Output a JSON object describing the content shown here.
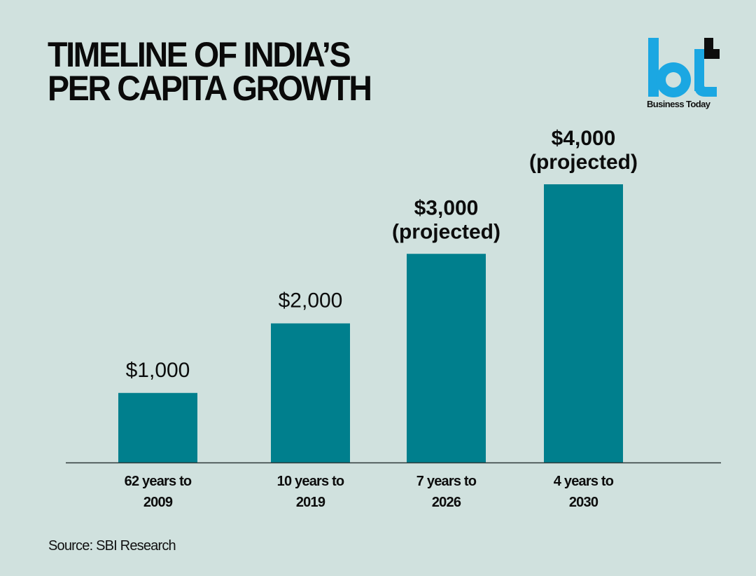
{
  "header": {
    "title_line1": "TIMELINE OF INDIA’S",
    "title_line2": "PER CAPITA GROWTH"
  },
  "logo": {
    "mark": "bt",
    "name": "Business Today",
    "colors": {
      "primary": "#1ba7e2",
      "accent": "#0d0d0d"
    }
  },
  "colors": {
    "background": "#d0e1de",
    "bar": "#007f8d",
    "axis": "#2e3a3a",
    "text": "#0c0c0c"
  },
  "chart_data": {
    "type": "bar",
    "title": "Timeline of India’s per capita growth",
    "xlabel": "",
    "ylabel": "",
    "ylim": [
      0,
      4000
    ],
    "grid": false,
    "legend": "none",
    "categories": [
      [
        "62 years to",
        "2009"
      ],
      [
        "10 years to",
        "2019"
      ],
      [
        "7 years to",
        "2026"
      ],
      [
        "4 years to",
        "2030"
      ]
    ],
    "values": [
      1000,
      2000,
      3000,
      4000
    ],
    "data_labels": [
      {
        "value": "$1,000",
        "note": "",
        "bold": false
      },
      {
        "value": "$2,000",
        "note": "",
        "bold": false
      },
      {
        "value": "$3,000",
        "note": "(projected)",
        "bold": true
      },
      {
        "value": "$4,000",
        "note": "(projected)",
        "bold": true
      }
    ],
    "unit": "USD"
  },
  "footer": {
    "source": "Source: SBI Research"
  }
}
